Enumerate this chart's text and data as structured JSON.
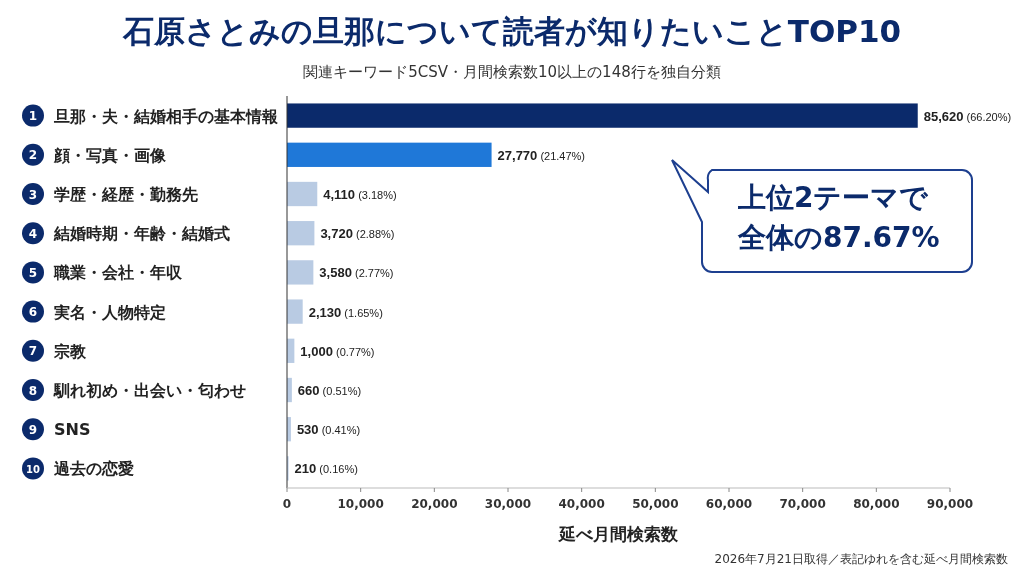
{
  "chart_data": {
    "type": "bar",
    "orientation": "horizontal",
    "title": "石原さとみの旦那について読者が知りたいことTOP10",
    "subtitle": "関連キーワード5CSV・月間検索数10以上の148行を独自分類",
    "xlabel": "延べ月間検索数",
    "categories": [
      "1 旦那・夫・結婚相手の基本情報",
      "2 顔・写真・画像",
      "3 学歴・経歴・勤務先",
      "4 結婚時期・年齢・結婚式",
      "5 職業・会社・年収",
      "6 実名・人物特定",
      "7 宗教",
      "8 馴れ初め・出会い・匂わせ",
      "9 SNS",
      "10 過去の恋愛"
    ],
    "values": [
      85620,
      27770,
      4110,
      3720,
      3580,
      2130,
      1000,
      660,
      530,
      210
    ],
    "colors": [
      "#0b2a6b",
      "#1f78d8",
      "#b9cbe3",
      "#b9cbe3",
      "#b9cbe3",
      "#b9cbe3",
      "#b9cbe3",
      "#b9cbe3",
      "#b9cbe3",
      "#b9cbe3"
    ],
    "value_labels": [
      "85,620 (66.20%)",
      "27,770 (21.47%)",
      "4,110 (3.18%)",
      "3,720 (2.88%)",
      "3,580 (2.77%)",
      "2,130 (1.65%)",
      "1,000 (0.77%)",
      "660 (0.51%)",
      "530 (0.41%)",
      "210 (0.16%)"
    ],
    "xlim": [
      0,
      90000
    ],
    "xticks": [
      0,
      {
        "value": 10000,
        "label": "10,000"
      },
      {
        "value": 20000,
        "label": "20,000"
      },
      {
        "value": 30000,
        "label": "30,000"
      },
      {
        "value": 40000,
        "label": "40,000"
      },
      {
        "value": 50000,
        "label": "50,000"
      },
      {
        "value": 60000,
        "label": "60,000"
      },
      {
        "value": 70000,
        "label": "70,000"
      },
      {
        "value": 80000,
        "label": "80,000"
      },
      {
        "value": 90000,
        "label": "90,000"
      }
    ],
    "annotations": [
      "上位2テーマで全体の87.67%",
      "2026年7月21日取得／表記ゆれを含む延べ月間検索数"
    ]
  }
}
